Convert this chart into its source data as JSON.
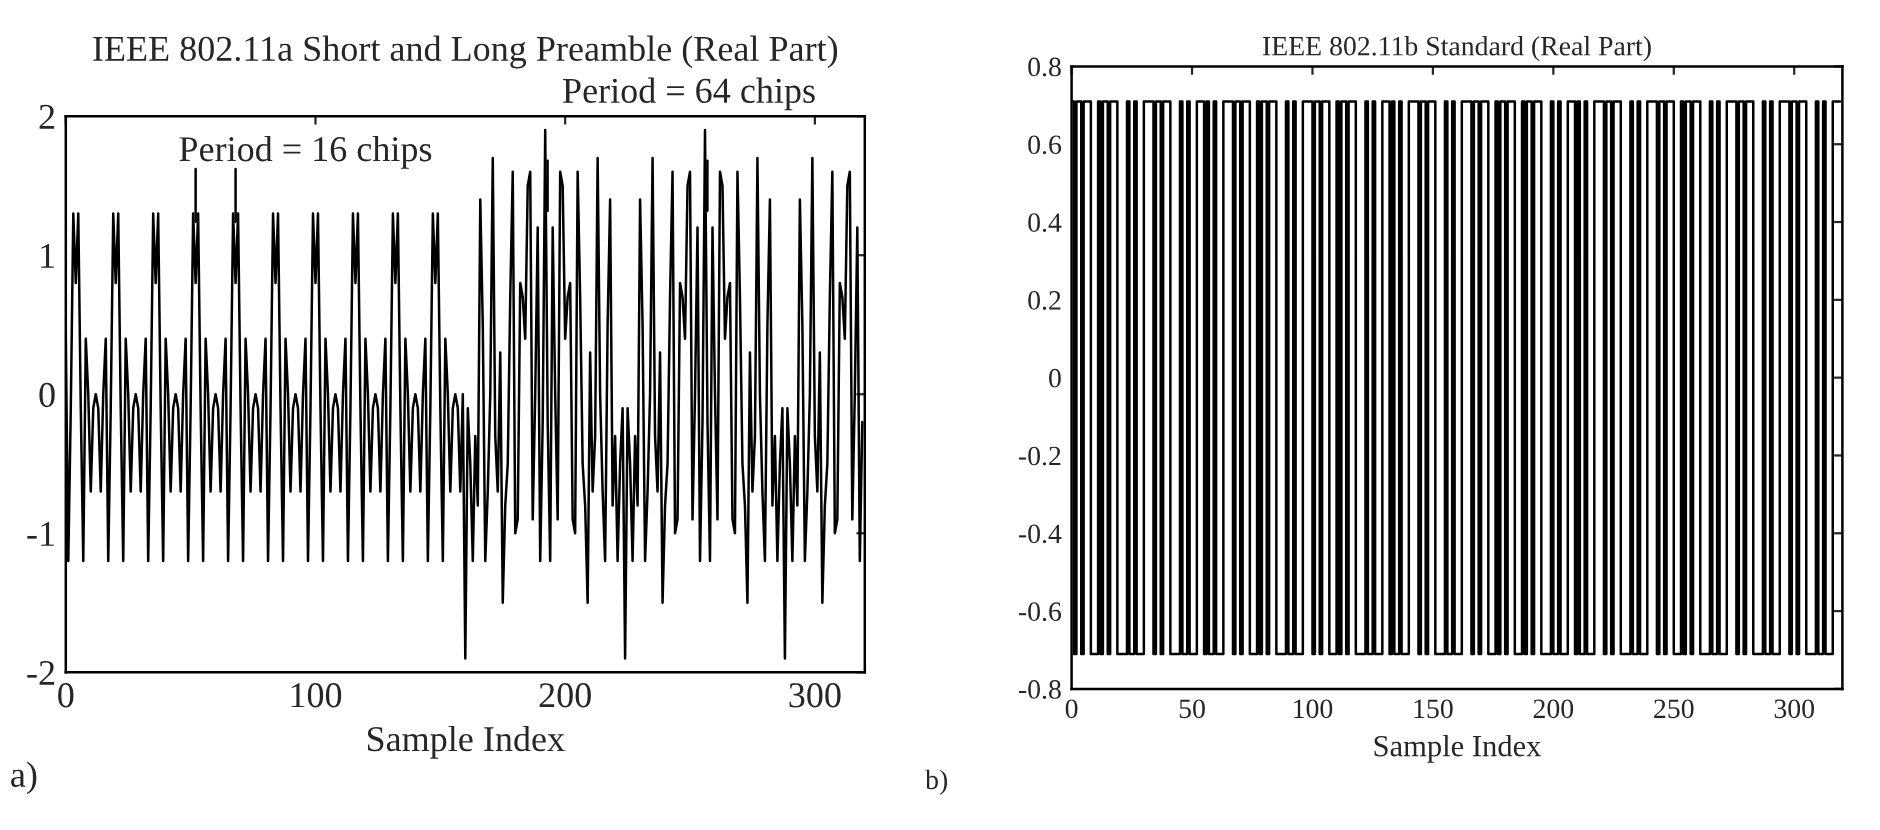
{
  "chart_data": [
    {
      "type": "line",
      "title": "IEEE 802.11a Short and Long Preamble (Real Part)",
      "xlabel": "Sample Index",
      "xlim": [
        0,
        320
      ],
      "xticks": [
        0,
        100,
        200,
        300
      ],
      "ylim": [
        -2,
        2
      ],
      "yticks": [
        -2,
        -1,
        0,
        1,
        2
      ],
      "grid": false,
      "legend": false,
      "line_style": "solid",
      "marker": "none",
      "annotations": [
        "Period = 16 chips",
        "Period = 64 chips",
        "a)"
      ],
      "series": [
        {
          "color": "#000000",
          "x": [
            0,
            1,
            2,
            3,
            4,
            5,
            6,
            7,
            8,
            9,
            10,
            11,
            12,
            13,
            14,
            15,
            16,
            17,
            18,
            19,
            20,
            21,
            22,
            23,
            24,
            25,
            26,
            27,
            28,
            29,
            30,
            31,
            32,
            33,
            34,
            35,
            36,
            37,
            38,
            39,
            40,
            41,
            42,
            43,
            44,
            45,
            46,
            47,
            48,
            49,
            50,
            51,
            52,
            53,
            54,
            55,
            56,
            57,
            58,
            59,
            60,
            61,
            62,
            63,
            64,
            65,
            66,
            67,
            68,
            69,
            70,
            71,
            72,
            73,
            74,
            75,
            76,
            77,
            78,
            79,
            80,
            81,
            82,
            83,
            84,
            85,
            86,
            87,
            88,
            89,
            90,
            91,
            92,
            93,
            94,
            95,
            96,
            97,
            98,
            99,
            100,
            101,
            102,
            103,
            104,
            105,
            106,
            107,
            108,
            109,
            110,
            111,
            112,
            113,
            114,
            115,
            116,
            117,
            118,
            119,
            120,
            121,
            122,
            123,
            124,
            125,
            126,
            127,
            128,
            129,
            130,
            131,
            132,
            133,
            134,
            135,
            136,
            137,
            138,
            139,
            140,
            141,
            142,
            143,
            144,
            145,
            146,
            147,
            148,
            149,
            150,
            151,
            152,
            153,
            154,
            155,
            156,
            157,
            158,
            159,
            160,
            161,
            162,
            163,
            164,
            165,
            166,
            167,
            168,
            169,
            170,
            171,
            172,
            173,
            174,
            175,
            176,
            177,
            178,
            179,
            180,
            181,
            182,
            183,
            184,
            185,
            186,
            187,
            188,
            189,
            190,
            191,
            192,
            193,
            194,
            195,
            196,
            197,
            198,
            199,
            200,
            201,
            202,
            203,
            204,
            205,
            206,
            207,
            208,
            209,
            210,
            211,
            212,
            213,
            214,
            215,
            216,
            217,
            218,
            219,
            220,
            221,
            222,
            223,
            224,
            225,
            226,
            227,
            228,
            229,
            230,
            231,
            232,
            233,
            234,
            235,
            236,
            237,
            238,
            239,
            240,
            241,
            242,
            243,
            244,
            245,
            246,
            247,
            248,
            249,
            250,
            251,
            252,
            253,
            254,
            255,
            256,
            257,
            258,
            259,
            260,
            261,
            262,
            263,
            264,
            265,
            266,
            267,
            268,
            269,
            270,
            271,
            272,
            273,
            274,
            275,
            276,
            277,
            278,
            279,
            280,
            281,
            282,
            283,
            284,
            285,
            286,
            287,
            288,
            289,
            290,
            291,
            292,
            293,
            294,
            295,
            296,
            297,
            298,
            299,
            300,
            301,
            302,
            303,
            304,
            305,
            306,
            307,
            308,
            309,
            310,
            311,
            312,
            313,
            314,
            315,
            316,
            317,
            318,
            319
          ],
          "values": [
            0.4,
            -1.2,
            -0.1,
            1.3,
            0.8,
            1.3,
            -0.1,
            -1.2,
            0.4,
            0,
            -0.7,
            -0.1,
            0,
            -0.1,
            -0.7,
            0,
            0.4,
            -1.2,
            -0.1,
            1.3,
            0.8,
            1.3,
            -0.1,
            -1.2,
            0.4,
            0,
            -0.7,
            -0.1,
            0,
            -0.1,
            -0.7,
            0,
            0.4,
            -1.2,
            -0.1,
            1.3,
            0.8,
            1.3,
            -0.1,
            -1.2,
            0.4,
            0,
            -0.7,
            -0.1,
            0,
            -0.1,
            -0.7,
            0,
            0.4,
            -1.2,
            -0.1,
            1.3,
            0.8,
            1.3,
            -0.1,
            -1.2,
            0.4,
            0,
            -0.7,
            -0.1,
            0,
            -0.1,
            -0.7,
            0,
            0.4,
            -1.2,
            -0.1,
            1.3,
            0.8,
            1.3,
            -0.1,
            -1.2,
            0.4,
            0,
            -0.7,
            -0.1,
            0,
            -0.1,
            -0.7,
            0,
            0.4,
            -1.2,
            -0.1,
            1.3,
            0.8,
            1.3,
            -0.1,
            -1.2,
            0.4,
            0,
            -0.7,
            -0.1,
            0,
            -0.1,
            -0.7,
            0,
            0.4,
            -1.2,
            -0.1,
            1.3,
            0.8,
            1.3,
            -0.1,
            -1.2,
            0.4,
            0,
            -0.7,
            -0.1,
            0,
            -0.1,
            -0.7,
            0,
            0.4,
            -1.2,
            -0.1,
            1.3,
            0.8,
            1.3,
            -0.1,
            -1.2,
            0.4,
            0,
            -0.7,
            -0.1,
            0,
            -0.1,
            -0.7,
            0,
            0.4,
            -1.2,
            -0.1,
            1.3,
            0.8,
            1.3,
            -0.1,
            -1.2,
            0.4,
            0,
            -0.7,
            -0.1,
            0,
            -0.1,
            -0.7,
            0,
            0.4,
            -1.2,
            -0.1,
            1.3,
            0.8,
            1.3,
            -0.1,
            -1.2,
            0.4,
            0,
            -0.7,
            -0.1,
            0,
            -0.1,
            -0.7,
            0,
            -1.9,
            -0.1,
            -0.5,
            -1.2,
            -0.3,
            -0.8,
            1.4,
            0.5,
            -1.2,
            -0.7,
            0,
            1.7,
            -0.3,
            -0.7,
            0.3,
            -1.5,
            -0.8,
            -0.5,
            0.7,
            1.6,
            -1,
            -0.9,
            0.8,
            0.7,
            0.4,
            1.5,
            1.6,
            -0.9,
            0,
            1.2,
            -1.2,
            -0.2,
            1.9,
            -0.2,
            -1.2,
            1.2,
            0,
            -0.9,
            1.6,
            1.5,
            0.4,
            0.7,
            0.8,
            -0.9,
            -1,
            1.6,
            0.7,
            -0.5,
            -0.8,
            -1.5,
            0.3,
            -0.7,
            -0.3,
            1.7,
            0,
            -0.7,
            -1.2,
            0.5,
            1.4,
            -0.8,
            -0.3,
            -1.2,
            -0.5,
            -0.1,
            -1.9,
            -0.1,
            -0.5,
            -1.2,
            -0.3,
            -0.8,
            1.4,
            0.5,
            -1.2,
            -0.7,
            0,
            1.7,
            -0.3,
            -0.7,
            0.3,
            -1.5,
            -0.8,
            -0.5,
            0.7,
            1.6,
            -1,
            -0.9,
            0.8,
            0.7,
            0.4,
            1.5,
            1.6,
            -0.9,
            0,
            1.2,
            -1.2,
            -0.2,
            1.9,
            -0.2,
            -1.2,
            1.2,
            0,
            -0.9,
            1.6,
            1.5,
            0.4,
            0.7,
            0.8,
            -0.9,
            -1,
            1.6,
            0.7,
            -0.5,
            -0.8,
            -1.5,
            0.3,
            -0.7,
            -0.3,
            1.7,
            0,
            -0.7,
            -1.2,
            0.5,
            1.4,
            -0.8,
            -0.3,
            -1.2,
            -0.5,
            -0.1,
            -1.9,
            -0.1,
            -0.5,
            -1.2,
            -0.3,
            -0.8,
            1.4,
            0.5,
            -1.2,
            -0.7,
            0,
            1.7,
            -0.3,
            -0.7,
            0.3,
            -1.5,
            -0.8,
            -0.5,
            0.7,
            1.6,
            -1,
            -0.9,
            0.8,
            0.7,
            0.4,
            1.5,
            1.6,
            -0.9,
            0,
            1.2,
            -1.2,
            -0.2
          ]
        }
      ]
    },
    {
      "type": "step",
      "title": "IEEE 802.11b Standard (Real Part)",
      "xlabel": "Sample Index",
      "xlim": [
        0,
        320
      ],
      "xticks": [
        0,
        50,
        100,
        150,
        200,
        250,
        300
      ],
      "ylim": [
        -0.8,
        0.8
      ],
      "yticks": [
        -0.8,
        -0.6,
        -0.4,
        -0.2,
        0,
        0.2,
        0.4,
        0.6,
        0.8
      ],
      "grid": false,
      "legend": false,
      "line_style": "solid",
      "marker": "none",
      "annotations": [
        "b)"
      ],
      "series": [
        {
          "color": "#000000",
          "x": [
            0,
            1,
            2,
            3,
            4,
            5,
            6,
            7,
            8,
            9,
            10,
            11,
            12,
            13,
            14,
            15,
            16,
            17,
            18,
            19,
            20,
            21,
            22,
            23,
            24,
            25,
            26,
            27,
            28,
            29,
            30,
            31,
            32,
            33,
            34,
            35,
            36,
            37,
            38,
            39,
            40,
            41,
            42,
            43,
            44,
            45,
            46,
            47,
            48,
            49,
            50,
            51,
            52,
            53,
            54,
            55,
            56,
            57,
            58,
            59,
            60,
            61,
            62,
            63,
            64,
            65,
            66,
            67,
            68,
            69,
            70,
            71,
            72,
            73,
            74,
            75,
            76,
            77,
            78,
            79,
            80,
            81,
            82,
            83,
            84,
            85,
            86,
            87,
            88,
            89,
            90,
            91,
            92,
            93,
            94,
            95,
            96,
            97,
            98,
            99,
            100,
            101,
            102,
            103,
            104,
            105,
            106,
            107,
            108,
            109,
            110,
            111,
            112,
            113,
            114,
            115,
            116,
            117,
            118,
            119,
            120,
            121,
            122,
            123,
            124,
            125,
            126,
            127,
            128,
            129,
            130,
            131,
            132,
            133,
            134,
            135,
            136,
            137,
            138,
            139,
            140,
            141,
            142,
            143,
            144,
            145,
            146,
            147,
            148,
            149,
            150,
            151,
            152,
            153,
            154,
            155,
            156,
            157,
            158,
            159,
            160,
            161,
            162,
            163,
            164,
            165,
            166,
            167,
            168,
            169,
            170,
            171,
            172,
            173,
            174,
            175,
            176,
            177,
            178,
            179,
            180,
            181,
            182,
            183,
            184,
            185,
            186,
            187,
            188,
            189,
            190,
            191,
            192,
            193,
            194,
            195,
            196,
            197,
            198,
            199,
            200,
            201,
            202,
            203,
            204,
            205,
            206,
            207,
            208,
            209,
            210,
            211,
            212,
            213,
            214,
            215,
            216,
            217,
            218,
            219,
            220,
            221,
            222,
            223,
            224,
            225,
            226,
            227,
            228,
            229,
            230,
            231,
            232,
            233,
            234,
            235,
            236,
            237,
            238,
            239,
            240,
            241,
            242,
            243,
            244,
            245,
            246,
            247,
            248,
            249,
            250,
            251,
            252,
            253,
            254,
            255,
            256,
            257,
            258,
            259,
            260,
            261,
            262,
            263,
            264,
            265,
            266,
            267,
            268,
            269,
            270,
            271,
            272,
            273,
            274,
            275,
            276,
            277,
            278,
            279,
            280,
            281,
            282,
            283,
            284,
            285,
            286,
            287,
            288,
            289,
            290,
            291,
            292,
            293,
            294,
            295,
            296,
            297,
            298,
            299,
            300,
            301,
            302,
            303,
            304,
            305,
            306,
            307,
            308,
            309,
            310,
            311,
            312,
            313,
            314,
            315,
            316,
            317,
            318,
            319
          ],
          "values": [
            0.71,
            -0.71,
            0.71,
            0.71,
            -0.71,
            0.71,
            0.71,
            0.71,
            -0.71,
            -0.71,
            -0.71,
            0.71,
            -0.71,
            0.71,
            0.71,
            -0.71,
            0.71,
            0.71,
            0.71,
            -0.71,
            -0.71,
            -0.71,
            -0.71,
            0.71,
            -0.71,
            -0.71,
            0.71,
            -0.71,
            -0.71,
            -0.71,
            0.71,
            0.71,
            0.71,
            0.71,
            -0.71,
            0.71,
            0.71,
            -0.71,
            0.71,
            0.71,
            0.71,
            -0.71,
            -0.71,
            -0.71,
            -0.71,
            0.71,
            -0.71,
            -0.71,
            0.71,
            -0.71,
            -0.71,
            -0.71,
            0.71,
            0.71,
            0.71,
            -0.71,
            0.71,
            -0.71,
            -0.71,
            0.71,
            -0.71,
            -0.71,
            -0.71,
            0.71,
            0.71,
            0.71,
            0.71,
            -0.71,
            0.71,
            0.71,
            -0.71,
            0.71,
            0.71,
            0.71,
            -0.71,
            -0.71,
            -0.71,
            0.71,
            -0.71,
            0.71,
            0.71,
            -0.71,
            0.71,
            0.71,
            0.71,
            -0.71,
            -0.71,
            -0.71,
            -0.71,
            0.71,
            -0.71,
            -0.71,
            0.71,
            -0.71,
            -0.71,
            -0.71,
            0.71,
            0.71,
            0.71,
            0.71,
            -0.71,
            0.71,
            0.71,
            -0.71,
            0.71,
            0.71,
            0.71,
            -0.71,
            -0.71,
            -0.71,
            0.71,
            -0.71,
            0.71,
            0.71,
            -0.71,
            0.71,
            0.71,
            0.71,
            -0.71,
            -0.71,
            -0.71,
            -0.71,
            0.71,
            -0.71,
            -0.71,
            0.71,
            -0.71,
            -0.71,
            -0.71,
            0.71,
            0.71,
            0.71,
            -0.71,
            0.71,
            -0.71,
            -0.71,
            0.71,
            -0.71,
            -0.71,
            -0.71,
            0.71,
            0.71,
            0.71,
            0.71,
            -0.71,
            0.71,
            0.71,
            -0.71,
            0.71,
            0.71,
            0.71,
            -0.71,
            -0.71,
            -0.71,
            -0.71,
            0.71,
            -0.71,
            -0.71,
            0.71,
            -0.71,
            -0.71,
            -0.71,
            0.71,
            0.71,
            0.71,
            0.71,
            -0.71,
            0.71,
            0.71,
            -0.71,
            0.71,
            0.71,
            0.71,
            -0.71,
            -0.71,
            -0.71,
            0.71,
            -0.71,
            0.71,
            0.71,
            -0.71,
            0.71,
            0.71,
            0.71,
            -0.71,
            -0.71,
            -0.71,
            0.71,
            -0.71,
            0.71,
            0.71,
            -0.71,
            0.71,
            0.71,
            0.71,
            -0.71,
            -0.71,
            -0.71,
            -0.71,
            0.71,
            -0.71,
            -0.71,
            0.71,
            -0.71,
            -0.71,
            -0.71,
            0.71,
            0.71,
            0.71,
            -0.71,
            0.71,
            -0.71,
            -0.71,
            0.71,
            -0.71,
            -0.71,
            -0.71,
            0.71,
            0.71,
            0.71,
            0.71,
            -0.71,
            0.71,
            0.71,
            -0.71,
            0.71,
            0.71,
            0.71,
            -0.71,
            -0.71,
            -0.71,
            -0.71,
            0.71,
            -0.71,
            -0.71,
            0.71,
            -0.71,
            -0.71,
            -0.71,
            0.71,
            0.71,
            0.71,
            0.71,
            -0.71,
            0.71,
            0.71,
            -0.71,
            0.71,
            0.71,
            0.71,
            -0.71,
            -0.71,
            -0.71,
            0.71,
            -0.71,
            0.71,
            0.71,
            -0.71,
            0.71,
            0.71,
            0.71,
            -0.71,
            -0.71,
            -0.71,
            -0.71,
            0.71,
            -0.71,
            -0.71,
            0.71,
            -0.71,
            -0.71,
            -0.71,
            0.71,
            0.71,
            0.71,
            0.71,
            -0.71,
            0.71,
            0.71,
            -0.71,
            0.71,
            0.71,
            0.71,
            -0.71,
            -0.71,
            -0.71,
            -0.71,
            0.71,
            -0.71,
            -0.71,
            0.71,
            -0.71,
            -0.71,
            -0.71,
            0.71,
            0.71,
            0.71,
            0.71,
            -0.71,
            0.71,
            0.71,
            -0.71,
            0.71,
            0.71,
            0.71,
            -0.71,
            -0.71,
            -0.71,
            -0.71,
            0.71,
            -0.71,
            -0.71,
            0.71,
            -0.71,
            -0.71,
            -0.71,
            0.71,
            0.71,
            0.71,
            0.71
          ]
        }
      ]
    }
  ]
}
